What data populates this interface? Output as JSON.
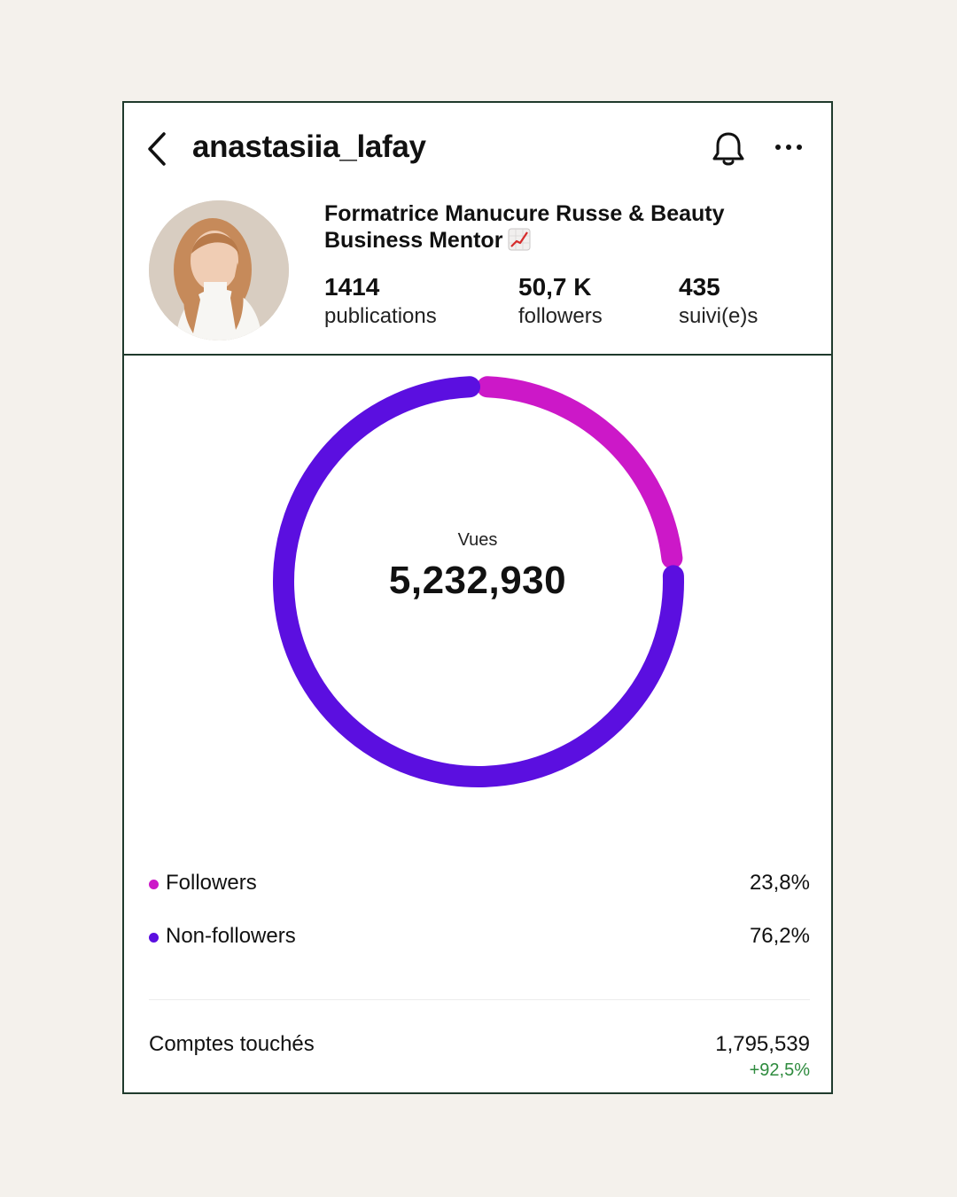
{
  "header": {
    "username": "anastasiia_lafay"
  },
  "profile": {
    "bio_line1": "Formatrice Manucure Russe & Beauty",
    "bio_line2": "Business Mentor",
    "stats": [
      {
        "value": "1414",
        "label": "publications"
      },
      {
        "value": "50,7 K",
        "label": "followers"
      },
      {
        "value": "435",
        "label": "suivi(e)s"
      }
    ]
  },
  "chart_data": {
    "type": "pie",
    "title": "Vues",
    "total": "5,232,930",
    "series": [
      {
        "name": "Followers",
        "value": 23.8,
        "label": "23,8%",
        "color": "#cc18c8"
      },
      {
        "name": "Non-followers",
        "value": 76.2,
        "label": "76,2%",
        "color": "#5b0fe0"
      }
    ]
  },
  "reached": {
    "label": "Comptes touchés",
    "value": "1,795,539",
    "change": "+92,5%"
  },
  "colors": {
    "followers": "#cc18c8",
    "non_followers": "#5b0fe0",
    "positive": "#2e8b3e",
    "frame": "#1f3a2c"
  },
  "icons": [
    "back-arrow-icon",
    "bell-icon",
    "more-icon",
    "chart-increasing-emoji-icon"
  ]
}
